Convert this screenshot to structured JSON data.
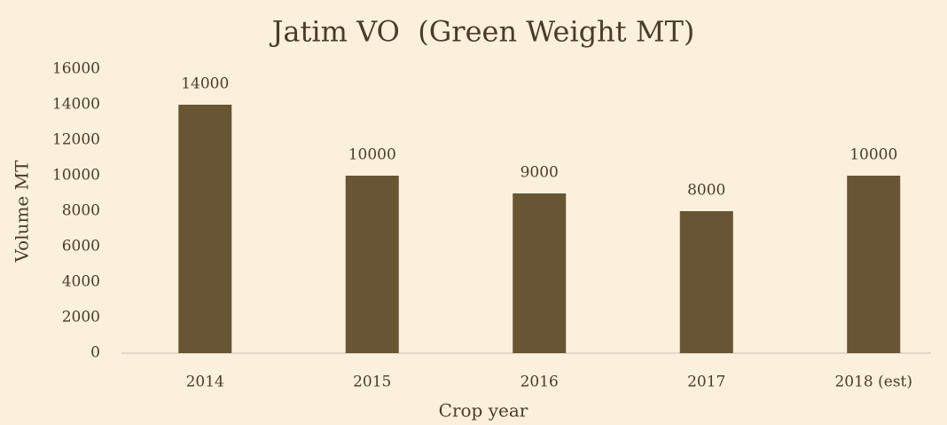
{
  "chart_data": {
    "type": "bar",
    "title": "Jatim VO  (Green Weight MT)",
    "x_label": "Crop year",
    "y_label": "Volume MT",
    "categories": [
      "2014",
      "2015",
      "2016",
      "2017",
      "2018 (est)"
    ],
    "values": [
      14000,
      10000,
      9000,
      8000,
      10000
    ],
    "color": "#675534",
    "ylim": [
      0,
      16000
    ],
    "yticks": [
      0,
      2000,
      4000,
      6000,
      8000,
      10000,
      12000,
      14000,
      16000
    ],
    "grid": false
  }
}
